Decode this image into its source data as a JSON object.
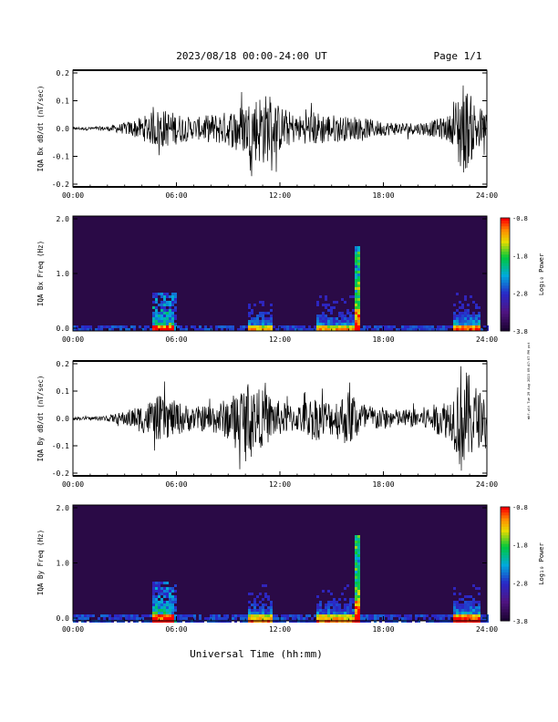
{
  "header": {
    "title": "2023/08/18  00:00-24:00 UT",
    "page": "Page 1/1"
  },
  "footer": {
    "xlabel": "Universal Time (hh:mm)"
  },
  "side_stamp": "mkf-plt Tue 29 Aug 2023 09:47:07 PM pst",
  "time_ticks": [
    "00:00",
    "06:00",
    "12:00",
    "18:00",
    "24:00"
  ],
  "colorbar": {
    "label": "Log₁₀ Power",
    "ticks": [
      "-0.8",
      "-1.8",
      "-2.8",
      "-3.8"
    ],
    "range": [
      -3.8,
      -0.8
    ]
  },
  "colors": {
    "background": "#ffffff",
    "trace": "#000000",
    "spectrogram_floor": "#2a0a46"
  },
  "chart_data": [
    {
      "type": "line",
      "ylabel": "IQA Bx dB/dt (nT/sec)",
      "xlim": [
        0,
        24
      ],
      "ylim": [
        -0.2,
        0.2
      ],
      "ytick_labels": [
        "0.2",
        "0.1",
        "0.0",
        "-0.1",
        "-0.2"
      ],
      "envelope": {
        "hours": [
          0,
          1,
          2,
          3,
          4,
          5,
          6,
          7,
          8,
          9,
          10,
          11,
          12,
          13,
          14,
          15,
          16,
          17,
          18,
          19,
          20,
          21,
          22,
          22.5,
          23,
          24
        ],
        "amplitude": [
          0.005,
          0.006,
          0.008,
          0.02,
          0.04,
          0.07,
          0.055,
          0.035,
          0.05,
          0.06,
          0.09,
          0.13,
          0.08,
          0.045,
          0.06,
          0.05,
          0.04,
          0.035,
          0.025,
          0.022,
          0.02,
          0.03,
          0.05,
          0.18,
          0.12,
          0.05
        ]
      }
    },
    {
      "type": "heatmap",
      "ylabel": "IQA Bx Freq (Hz)",
      "xlim": [
        0,
        24
      ],
      "ylim": [
        0,
        2
      ],
      "ytick_labels": [
        "2.0",
        "1.0",
        "0.0"
      ],
      "zlabel": "Log₁₀ Power",
      "zlim": [
        -3.8,
        -0.8
      ]
    },
    {
      "type": "line",
      "ylabel": "IQA By dB/dt (nT/sec)",
      "xlim": [
        0,
        24
      ],
      "ylim": [
        -0.2,
        0.2
      ],
      "ytick_labels": [
        "0.2",
        "0.1",
        "0.0",
        "-0.1",
        "-0.2"
      ],
      "envelope": {
        "hours": [
          0,
          1,
          2,
          3,
          4,
          5,
          6,
          7,
          8,
          9,
          10,
          11,
          12,
          13,
          14,
          15,
          16,
          17,
          18,
          19,
          20,
          21,
          22,
          22.5,
          23,
          24
        ],
        "amplitude": [
          0.005,
          0.006,
          0.01,
          0.025,
          0.05,
          0.08,
          0.06,
          0.04,
          0.05,
          0.07,
          0.12,
          0.1,
          0.06,
          0.045,
          0.08,
          0.06,
          0.1,
          0.05,
          0.04,
          0.03,
          0.035,
          0.05,
          0.08,
          0.2,
          0.15,
          0.06
        ]
      }
    },
    {
      "type": "heatmap",
      "ylabel": "IQA By Freq (Hz)",
      "xlim": [
        0,
        24
      ],
      "ylim": [
        0,
        2
      ],
      "ytick_labels": [
        "2.0",
        "1.0",
        "0.0"
      ],
      "zlabel": "Log₁₀ Power",
      "zlim": [
        -3.8,
        -0.8
      ]
    }
  ]
}
